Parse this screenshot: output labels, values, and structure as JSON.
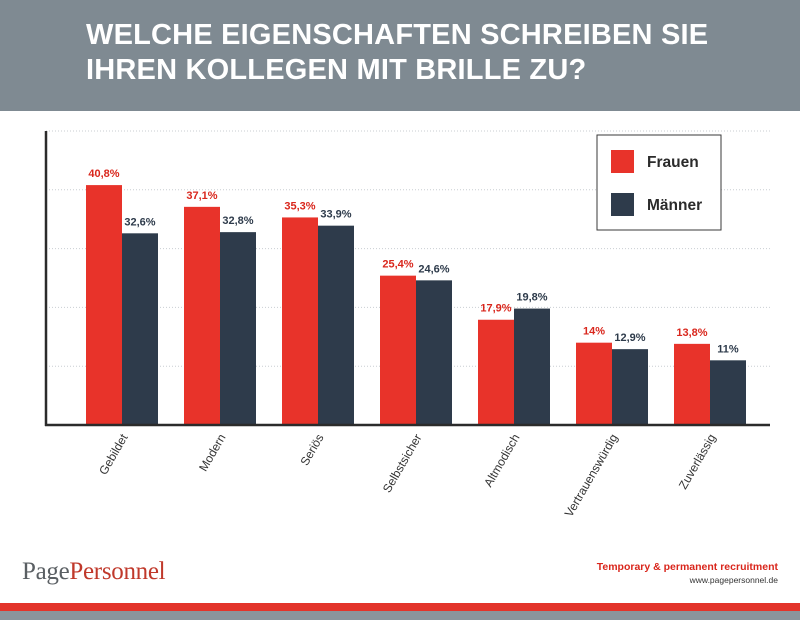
{
  "title": {
    "line1": "WELCHE EIGENSCHAFTEN SCHREIBEN SIE",
    "line2": "IHREN KOLLEGEN MIT BRILLE ZU?"
  },
  "chart_data": {
    "type": "bar",
    "categories": [
      "Gebildet",
      "Modern",
      "Seriös",
      "Selbstsicher",
      "Altmodisch",
      "Vertrauenswürdig",
      "Zuverlässig"
    ],
    "series": [
      {
        "name": "Frauen",
        "color": "#e8332a",
        "values": [
          40.8,
          37.1,
          35.3,
          25.4,
          17.9,
          14.0,
          13.8
        ],
        "labels": [
          "40,8%",
          "37,1%",
          "35,3%",
          "25,4%",
          "17,9%",
          "14%",
          "13,8%"
        ]
      },
      {
        "name": "Männer",
        "color": "#2e3b4b",
        "values": [
          32.6,
          32.8,
          33.9,
          24.6,
          19.8,
          12.9,
          11.0
        ],
        "labels": [
          "32,6%",
          "32,8%",
          "33,9%",
          "24,6%",
          "19,8%",
          "12,9%",
          "11%"
        ]
      }
    ],
    "ylim": [
      0,
      50
    ],
    "grid": true,
    "legend": "top-right"
  },
  "footer": {
    "logo_page": "Page",
    "logo_personnel": "Personnel",
    "tagline": "Temporary & permanent recruitment",
    "url": "www.pagepersonnel.de"
  }
}
